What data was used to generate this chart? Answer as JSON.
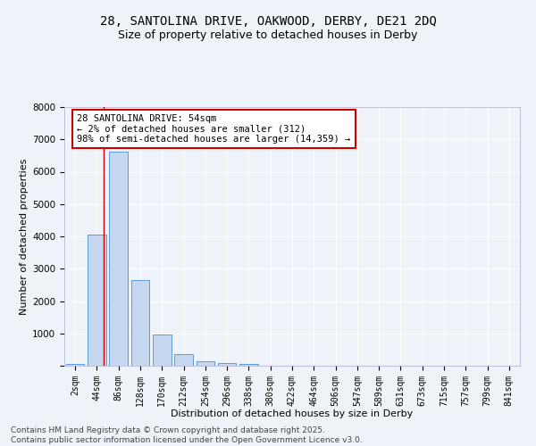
{
  "title_line1": "28, SANTOLINA DRIVE, OAKWOOD, DERBY, DE21 2DQ",
  "title_line2": "Size of property relative to detached houses in Derby",
  "xlabel": "Distribution of detached houses by size in Derby",
  "ylabel": "Number of detached properties",
  "categories": [
    "2sqm",
    "44sqm",
    "86sqm",
    "128sqm",
    "170sqm",
    "212sqm",
    "254sqm",
    "296sqm",
    "338sqm",
    "380sqm",
    "422sqm",
    "464sqm",
    "506sqm",
    "547sqm",
    "589sqm",
    "631sqm",
    "673sqm",
    "715sqm",
    "757sqm",
    "799sqm",
    "841sqm"
  ],
  "values": [
    60,
    4050,
    6620,
    2650,
    970,
    350,
    140,
    80,
    50,
    0,
    0,
    0,
    0,
    0,
    0,
    0,
    0,
    0,
    0,
    0,
    0
  ],
  "bar_color": "#c5d8f0",
  "bar_edge_color": "#5b9bd5",
  "background_color": "#eef2f9",
  "grid_color": "#ffffff",
  "annotation_text": "28 SANTOLINA DRIVE: 54sqm\n← 2% of detached houses are smaller (312)\n98% of semi-detached houses are larger (14,359) →",
  "annotation_box_facecolor": "#ffffff",
  "annotation_box_edge_color": "#cc0000",
  "property_vline_x": 1.3,
  "ylim": [
    0,
    8000
  ],
  "yticks": [
    0,
    1000,
    2000,
    3000,
    4000,
    5000,
    6000,
    7000,
    8000
  ],
  "footer_line1": "Contains HM Land Registry data © Crown copyright and database right 2025.",
  "footer_line2": "Contains public sector information licensed under the Open Government Licence v3.0.",
  "title1_fontsize": 10,
  "title2_fontsize": 9,
  "axis_label_fontsize": 8,
  "tick_fontsize": 7,
  "annotation_fontsize": 7.5,
  "footer_fontsize": 6.5
}
